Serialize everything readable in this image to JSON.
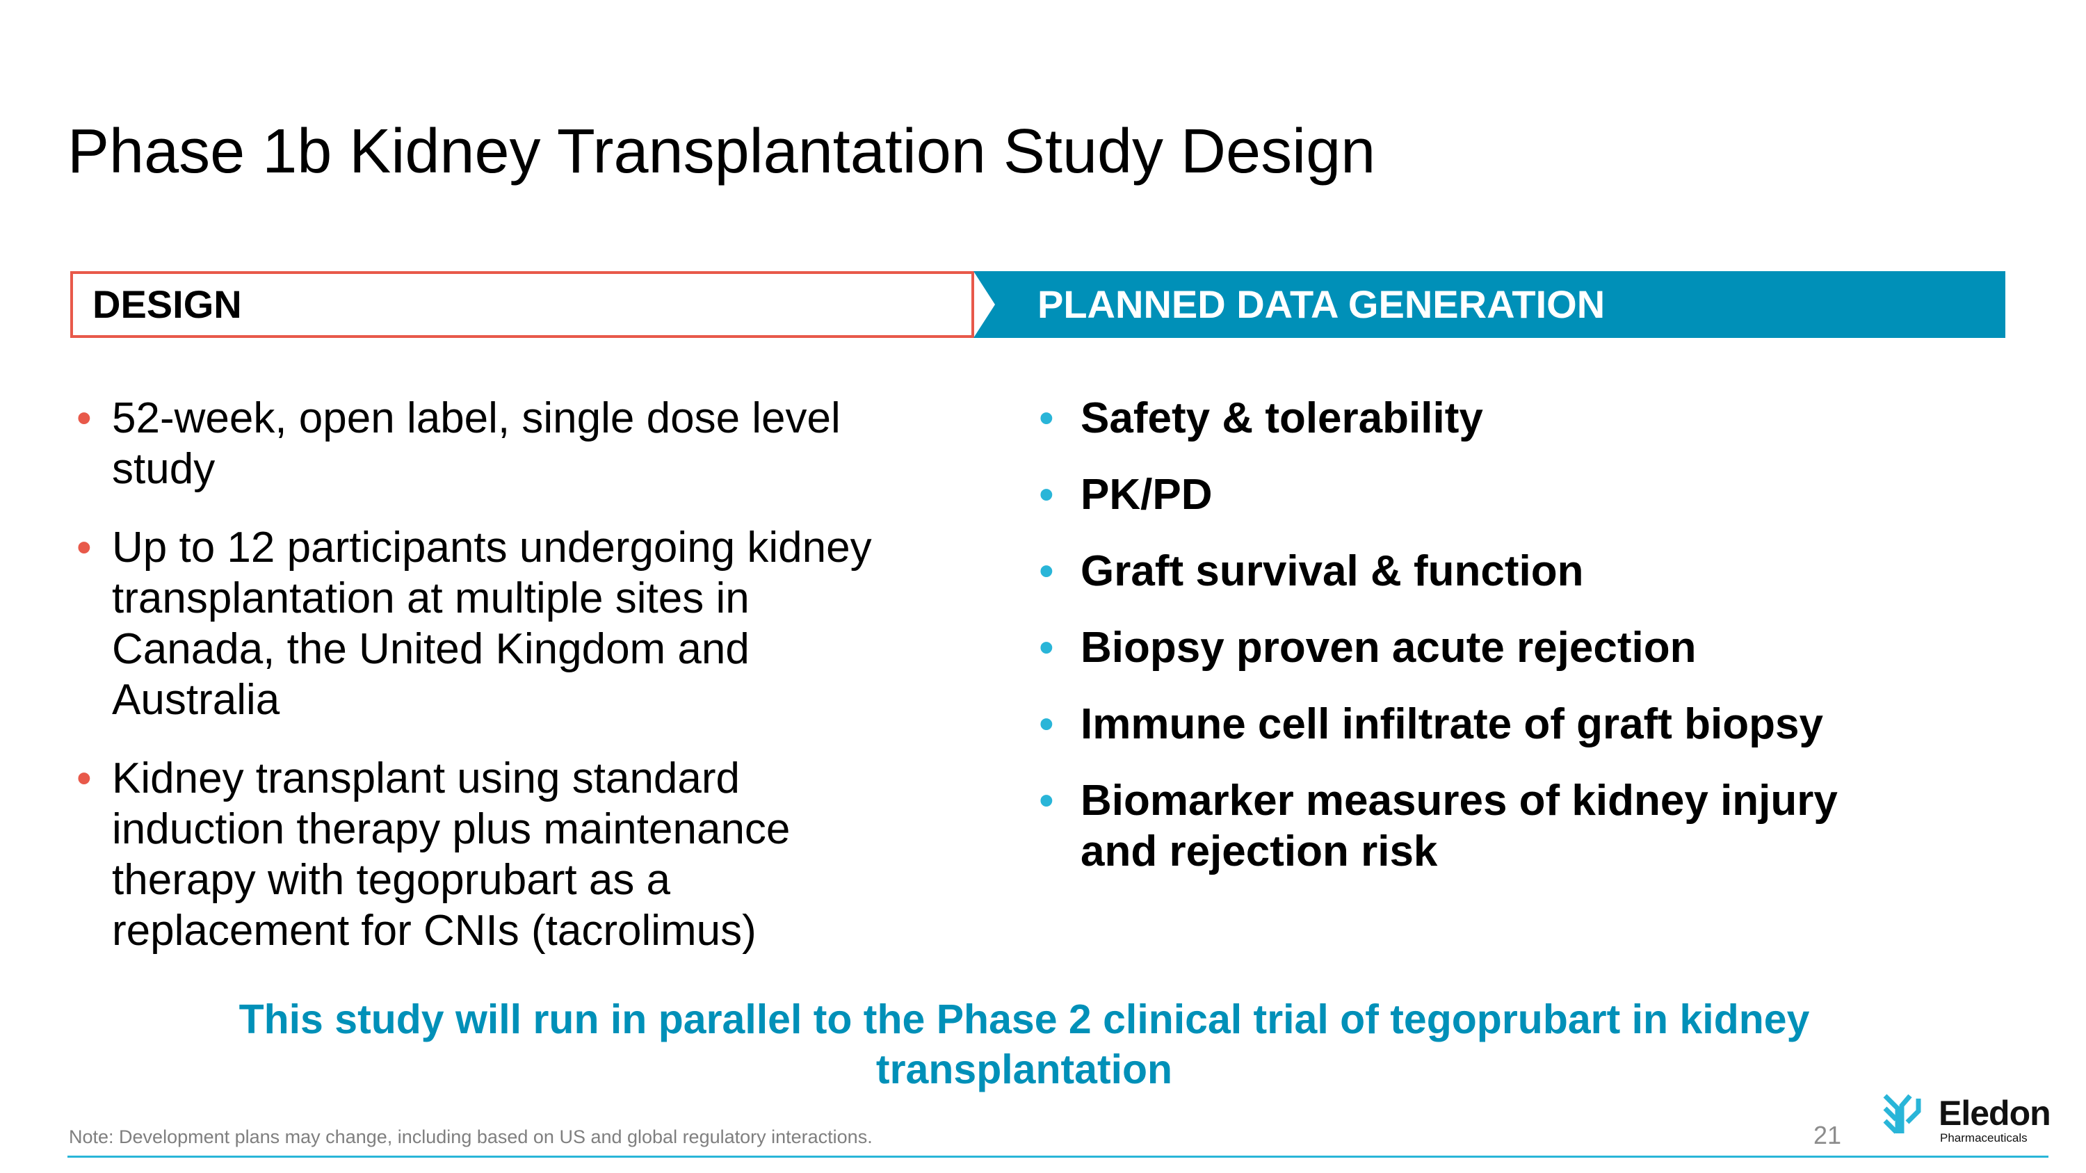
{
  "title": "Phase 1b Kidney Transplantation Study Design",
  "design": {
    "label": "DESIGN",
    "items": [
      "52-week, open label, single dose level study",
      "Up to 12 participants undergoing kidney transplantation at multiple sites in Canada, the United Kingdom and Australia",
      "Kidney transplant using standard induction therapy plus maintenance therapy with tegoprubart as a replacement for CNIs (tacrolimus)"
    ]
  },
  "planned": {
    "label": "PLANNED DATA GENERATION",
    "items": [
      "Safety & tolerability",
      "PK/PD",
      "Graft survival & function",
      "Biopsy proven acute rejection",
      "Immune cell infiltrate of graft biopsy",
      "Biomarker measures of kidney injury and rejection risk"
    ]
  },
  "callout": "This study will run in parallel to the Phase 2 clinical trial of tegoprubart in kidney transplantation",
  "footer": {
    "note": "Note: Development plans may change, including based on US and global regulatory interactions.",
    "page_number": "21",
    "logo_name": "Eledon",
    "logo_sub": "Pharmaceuticals"
  },
  "colors": {
    "design_border": "#e8594a",
    "planned_bg": "#0090b8",
    "accent": "#29b5d8",
    "callout": "#0090b8"
  }
}
